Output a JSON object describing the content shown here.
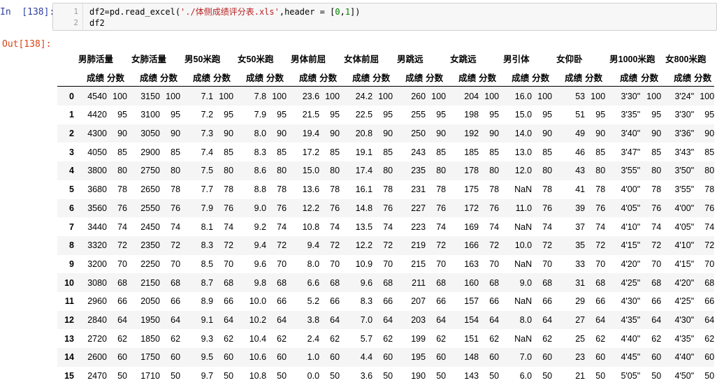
{
  "input_prompt": "In  [138]:",
  "output_prompt": "Out[138]:",
  "code": {
    "line_numbers": [
      "1",
      "2"
    ],
    "line1_pre": "df2=pd.read_excel(",
    "line1_str": "'./体侧成绩评分表.xls'",
    "line1_mid": ",header = [",
    "line1_n0": "0",
    "line1_comma": ",",
    "line1_n1": "1",
    "line1_end": "])",
    "line2": "df2"
  },
  "table": {
    "top_headers": [
      "男肺活量",
      "女肺活量",
      "男50米跑",
      "女50米跑",
      "男体前屈",
      "女体前屈",
      "男跳远",
      "女跳远",
      "男引体",
      "女仰卧",
      "男1000米跑",
      "女800米跑"
    ],
    "sub_headers": [
      "成绩",
      "分数"
    ],
    "rows": [
      {
        "index": "0",
        "cells": [
          "4540",
          "100",
          "3150",
          "100",
          "7.1",
          "100",
          "7.8",
          "100",
          "23.6",
          "100",
          "24.2",
          "100",
          "260",
          "100",
          "204",
          "100",
          "16.0",
          "100",
          "53",
          "100",
          "3'30\"",
          "100",
          "3'24\"",
          "100"
        ]
      },
      {
        "index": "1",
        "cells": [
          "4420",
          "95",
          "3100",
          "95",
          "7.2",
          "95",
          "7.9",
          "95",
          "21.5",
          "95",
          "22.5",
          "95",
          "255",
          "95",
          "198",
          "95",
          "15.0",
          "95",
          "51",
          "95",
          "3'35\"",
          "95",
          "3'30\"",
          "95"
        ]
      },
      {
        "index": "2",
        "cells": [
          "4300",
          "90",
          "3050",
          "90",
          "7.3",
          "90",
          "8.0",
          "90",
          "19.4",
          "90",
          "20.8",
          "90",
          "250",
          "90",
          "192",
          "90",
          "14.0",
          "90",
          "49",
          "90",
          "3'40\"",
          "90",
          "3'36\"",
          "90"
        ]
      },
      {
        "index": "3",
        "cells": [
          "4050",
          "85",
          "2900",
          "85",
          "7.4",
          "85",
          "8.3",
          "85",
          "17.2",
          "85",
          "19.1",
          "85",
          "243",
          "85",
          "185",
          "85",
          "13.0",
          "85",
          "46",
          "85",
          "3'47\"",
          "85",
          "3'43\"",
          "85"
        ]
      },
      {
        "index": "4",
        "cells": [
          "3800",
          "80",
          "2750",
          "80",
          "7.5",
          "80",
          "8.6",
          "80",
          "15.0",
          "80",
          "17.4",
          "80",
          "235",
          "80",
          "178",
          "80",
          "12.0",
          "80",
          "43",
          "80",
          "3'55\"",
          "80",
          "3'50\"",
          "80"
        ]
      },
      {
        "index": "5",
        "cells": [
          "3680",
          "78",
          "2650",
          "78",
          "7.7",
          "78",
          "8.8",
          "78",
          "13.6",
          "78",
          "16.1",
          "78",
          "231",
          "78",
          "175",
          "78",
          "NaN",
          "78",
          "41",
          "78",
          "4'00\"",
          "78",
          "3'55\"",
          "78"
        ]
      },
      {
        "index": "6",
        "cells": [
          "3560",
          "76",
          "2550",
          "76",
          "7.9",
          "76",
          "9.0",
          "76",
          "12.2",
          "76",
          "14.8",
          "76",
          "227",
          "76",
          "172",
          "76",
          "11.0",
          "76",
          "39",
          "76",
          "4'05\"",
          "76",
          "4'00\"",
          "76"
        ]
      },
      {
        "index": "7",
        "cells": [
          "3440",
          "74",
          "2450",
          "74",
          "8.1",
          "74",
          "9.2",
          "74",
          "10.8",
          "74",
          "13.5",
          "74",
          "223",
          "74",
          "169",
          "74",
          "NaN",
          "74",
          "37",
          "74",
          "4'10\"",
          "74",
          "4'05\"",
          "74"
        ]
      },
      {
        "index": "8",
        "cells": [
          "3320",
          "72",
          "2350",
          "72",
          "8.3",
          "72",
          "9.4",
          "72",
          "9.4",
          "72",
          "12.2",
          "72",
          "219",
          "72",
          "166",
          "72",
          "10.0",
          "72",
          "35",
          "72",
          "4'15\"",
          "72",
          "4'10\"",
          "72"
        ]
      },
      {
        "index": "9",
        "cells": [
          "3200",
          "70",
          "2250",
          "70",
          "8.5",
          "70",
          "9.6",
          "70",
          "8.0",
          "70",
          "10.9",
          "70",
          "215",
          "70",
          "163",
          "70",
          "NaN",
          "70",
          "33",
          "70",
          "4'20\"",
          "70",
          "4'15\"",
          "70"
        ]
      },
      {
        "index": "10",
        "cells": [
          "3080",
          "68",
          "2150",
          "68",
          "8.7",
          "68",
          "9.8",
          "68",
          "6.6",
          "68",
          "9.6",
          "68",
          "211",
          "68",
          "160",
          "68",
          "9.0",
          "68",
          "31",
          "68",
          "4'25\"",
          "68",
          "4'20\"",
          "68"
        ]
      },
      {
        "index": "11",
        "cells": [
          "2960",
          "66",
          "2050",
          "66",
          "8.9",
          "66",
          "10.0",
          "66",
          "5.2",
          "66",
          "8.3",
          "66",
          "207",
          "66",
          "157",
          "66",
          "NaN",
          "66",
          "29",
          "66",
          "4'30\"",
          "66",
          "4'25\"",
          "66"
        ]
      },
      {
        "index": "12",
        "cells": [
          "2840",
          "64",
          "1950",
          "64",
          "9.1",
          "64",
          "10.2",
          "64",
          "3.8",
          "64",
          "7.0",
          "64",
          "203",
          "64",
          "154",
          "64",
          "8.0",
          "64",
          "27",
          "64",
          "4'35\"",
          "64",
          "4'30\"",
          "64"
        ]
      },
      {
        "index": "13",
        "cells": [
          "2720",
          "62",
          "1850",
          "62",
          "9.3",
          "62",
          "10.4",
          "62",
          "2.4",
          "62",
          "5.7",
          "62",
          "199",
          "62",
          "151",
          "62",
          "NaN",
          "62",
          "25",
          "62",
          "4'40\"",
          "62",
          "4'35\"",
          "62"
        ]
      },
      {
        "index": "14",
        "cells": [
          "2600",
          "60",
          "1750",
          "60",
          "9.5",
          "60",
          "10.6",
          "60",
          "1.0",
          "60",
          "4.4",
          "60",
          "195",
          "60",
          "148",
          "60",
          "7.0",
          "60",
          "23",
          "60",
          "4'45\"",
          "60",
          "4'40\"",
          "60"
        ]
      },
      {
        "index": "15",
        "cells": [
          "2470",
          "50",
          "1710",
          "50",
          "9.7",
          "50",
          "10.8",
          "50",
          "0.0",
          "50",
          "3.6",
          "50",
          "190",
          "50",
          "143",
          "50",
          "6.0",
          "50",
          "21",
          "50",
          "5'05\"",
          "50",
          "4'50\"",
          "50"
        ]
      }
    ]
  }
}
